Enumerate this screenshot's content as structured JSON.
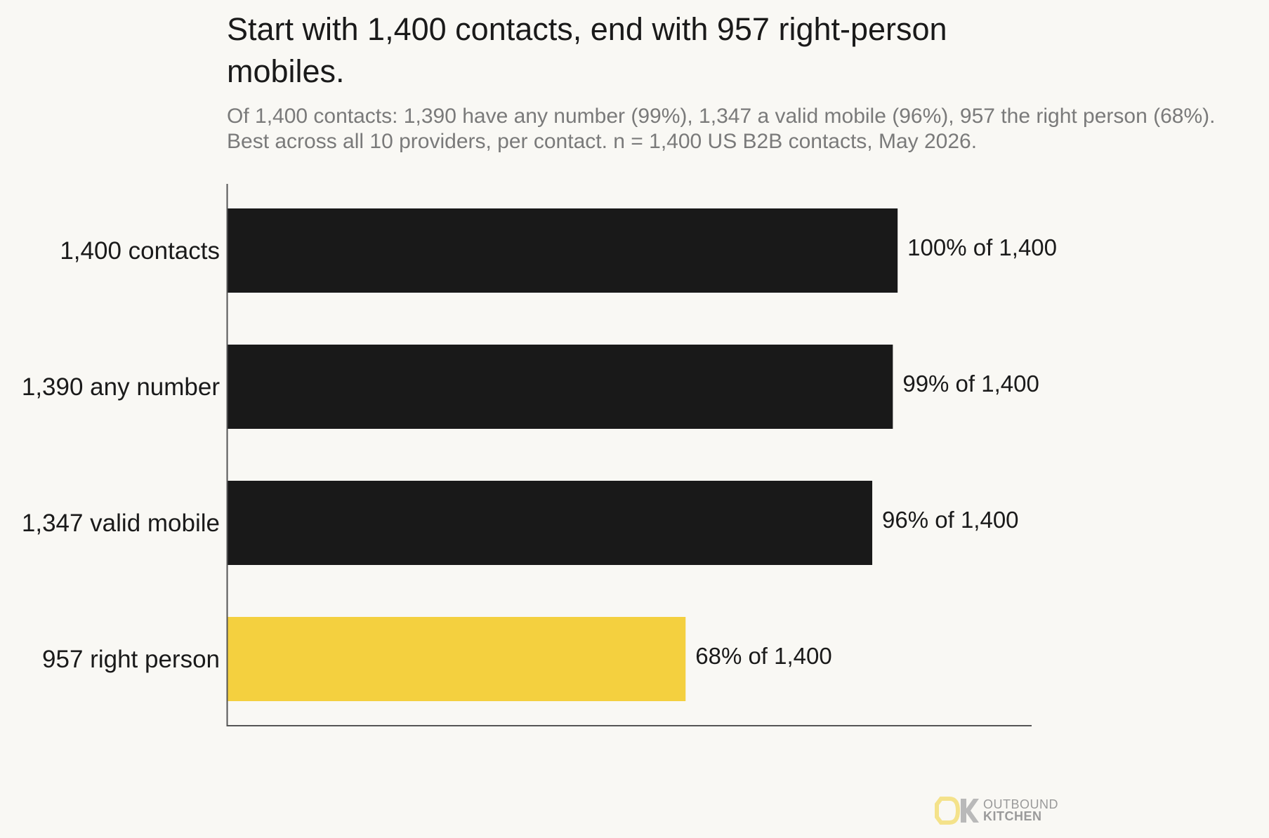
{
  "chart_data": {
    "type": "bar",
    "orientation": "horizontal",
    "title": "Start with 1,400 contacts, end with 957 right-person mobiles.",
    "subtitle": "Of 1,400 contacts: 1,390 have any number (99%), 1,347 a valid mobile (96%), 957 the right person (68%). Best across all 10 providers, per contact. n = 1,400 US B2B contacts, May 2026.",
    "categories": [
      "1,400 contacts",
      "1,390 any number",
      "1,347 valid mobile",
      "957 right person"
    ],
    "values": [
      1400,
      1390,
      1347,
      957
    ],
    "data_labels": [
      "100% of 1,400",
      "99% of 1,400",
      "96% of 1,400",
      "68% of 1,400"
    ],
    "xlim": [
      0,
      1680
    ],
    "grid": false,
    "colors": [
      "#191919",
      "#191919",
      "#191919",
      "#f4d03f"
    ]
  },
  "brand": {
    "logo_top": "OUTBOUND",
    "logo_bottom": "KITCHEN",
    "colors": {
      "mark_yellow": "#f4e28a",
      "mark_gray": "#b9b9b9"
    }
  }
}
